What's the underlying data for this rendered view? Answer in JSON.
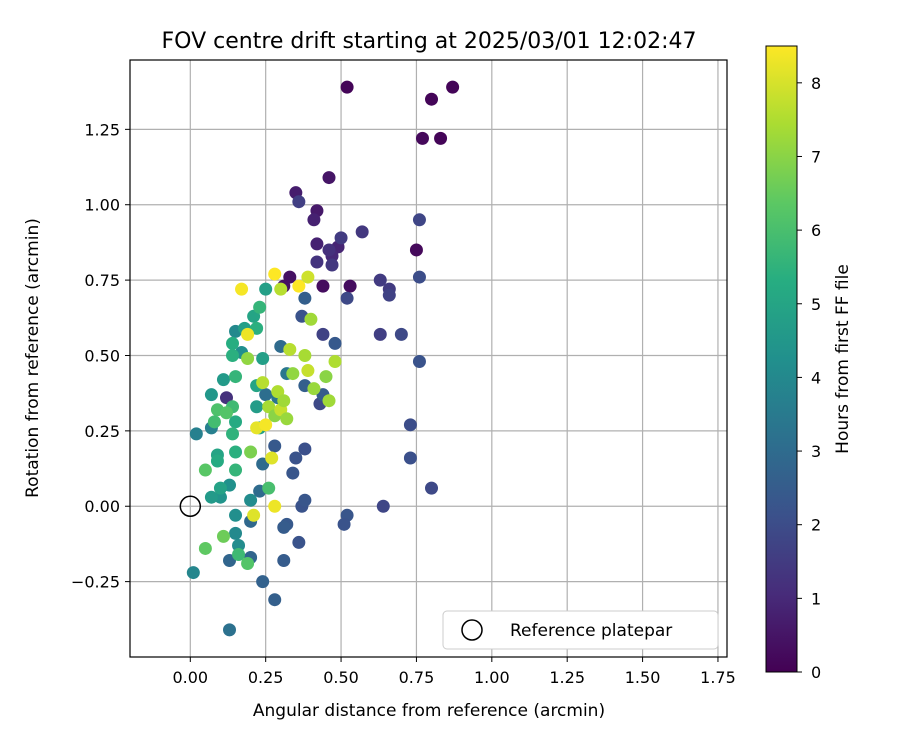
{
  "chart_data": {
    "type": "scatter",
    "title": "FOV centre drift starting at 2025/03/01 12:02:47",
    "xlabel": "Angular distance from reference (arcmin)",
    "ylabel": "Rotation from reference (arcmin)",
    "xlim": [
      -0.2,
      1.78
    ],
    "ylim": [
      -0.5,
      1.48
    ],
    "x_ticks": [
      0.0,
      0.25,
      0.5,
      0.75,
      1.0,
      1.25,
      1.5,
      1.75
    ],
    "x_tick_labels": [
      "0.00",
      "0.25",
      "0.50",
      "0.75",
      "1.00",
      "1.25",
      "1.50",
      "1.75"
    ],
    "y_ticks": [
      -0.25,
      0.0,
      0.25,
      0.5,
      0.75,
      1.0,
      1.25
    ],
    "y_tick_labels": [
      "−0.25",
      "0.00",
      "0.25",
      "0.50",
      "0.75",
      "1.00",
      "1.25"
    ],
    "grid": true,
    "legend": {
      "position": "lower-right",
      "entries": [
        "Reference platepar"
      ]
    },
    "reference_point": {
      "x": 0.0,
      "y": 0.0,
      "marker": "open-circle"
    },
    "colorbar": {
      "label": "Hours from first FF file",
      "min": 0,
      "max": 8.5,
      "ticks": [
        0,
        1,
        2,
        3,
        4,
        5,
        6,
        7,
        8
      ],
      "tick_labels": [
        "0",
        "1",
        "2",
        "3",
        "4",
        "5",
        "6",
        "7",
        "8"
      ],
      "colormap": "viridis"
    },
    "points": [
      [
        0.52,
        1.39,
        0.1
      ],
      [
        0.8,
        1.35,
        0.1
      ],
      [
        0.87,
        1.39,
        0.1
      ],
      [
        0.77,
        1.22,
        0.2
      ],
      [
        0.83,
        1.22,
        0.1
      ],
      [
        0.75,
        0.85,
        0.2
      ],
      [
        0.44,
        0.73,
        0.3
      ],
      [
        0.53,
        0.73,
        0.3
      ],
      [
        0.33,
        0.76,
        0.4
      ],
      [
        0.31,
        0.73,
        0.4
      ],
      [
        0.46,
        1.09,
        0.5
      ],
      [
        0.42,
        0.98,
        0.6
      ],
      [
        0.41,
        0.95,
        0.8
      ],
      [
        0.42,
        0.87,
        0.8
      ],
      [
        0.49,
        0.86,
        0.9
      ],
      [
        0.47,
        0.83,
        1.0
      ],
      [
        0.35,
        1.04,
        0.7
      ],
      [
        0.36,
        1.01,
        1.6
      ],
      [
        0.46,
        0.85,
        1.2
      ],
      [
        0.47,
        0.8,
        1.4
      ],
      [
        0.42,
        0.81,
        1.3
      ],
      [
        0.5,
        0.89,
        1.5
      ],
      [
        0.57,
        0.91,
        1.4
      ],
      [
        0.63,
        0.75,
        1.5
      ],
      [
        0.66,
        0.72,
        1.5
      ],
      [
        0.66,
        0.7,
        1.7
      ],
      [
        0.76,
        0.95,
        1.8
      ],
      [
        0.76,
        0.76,
        2.0
      ],
      [
        0.52,
        0.69,
        1.9
      ],
      [
        0.44,
        0.57,
        1.7
      ],
      [
        0.63,
        0.57,
        1.6
      ],
      [
        0.7,
        0.57,
        1.9
      ],
      [
        0.76,
        0.48,
        2.2
      ],
      [
        0.73,
        0.27,
        2.0
      ],
      [
        0.73,
        0.16,
        2.1
      ],
      [
        0.8,
        0.06,
        1.9
      ],
      [
        0.64,
        0.0,
        1.8
      ],
      [
        0.52,
        -0.03,
        2.3
      ],
      [
        0.51,
        -0.06,
        2.2
      ],
      [
        0.43,
        0.34,
        1.9
      ],
      [
        0.48,
        0.54,
        2.4
      ],
      [
        0.37,
        0.63,
        2.2
      ],
      [
        0.38,
        0.69,
        2.6
      ],
      [
        0.38,
        0.4,
        2.6
      ],
      [
        0.44,
        0.37,
        2.5
      ],
      [
        0.28,
        0.2,
        2.4
      ],
      [
        0.34,
        0.11,
        2.3
      ],
      [
        0.35,
        0.16,
        2.2
      ],
      [
        0.38,
        0.19,
        2.1
      ],
      [
        0.37,
        0.0,
        2.2
      ],
      [
        0.38,
        0.02,
        2.3
      ],
      [
        0.32,
        -0.06,
        2.4
      ],
      [
        0.31,
        -0.07,
        2.5
      ],
      [
        0.31,
        -0.18,
        2.5
      ],
      [
        0.36,
        -0.12,
        2.2
      ],
      [
        0.24,
        -0.25,
        2.7
      ],
      [
        0.28,
        -0.31,
        2.6
      ],
      [
        0.13,
        -0.41,
        3.2
      ],
      [
        0.13,
        -0.18,
        2.8
      ],
      [
        0.2,
        -0.17,
        2.8
      ],
      [
        0.2,
        -0.05,
        2.9
      ],
      [
        0.23,
        0.05,
        3.0
      ],
      [
        0.24,
        0.14,
        3.0
      ],
      [
        0.3,
        0.53,
        3.0
      ],
      [
        0.32,
        0.44,
        3.4
      ],
      [
        0.29,
        0.36,
        3.3
      ],
      [
        0.25,
        0.37,
        3.1
      ],
      [
        0.16,
        -0.13,
        4.1
      ],
      [
        0.15,
        -0.09,
        4.0
      ],
      [
        0.15,
        -0.03,
        4.2
      ],
      [
        0.1,
        0.03,
        4.4
      ],
      [
        0.13,
        0.07,
        4.3
      ],
      [
        0.2,
        0.02,
        4.1
      ],
      [
        0.01,
        -0.22,
        3.9
      ],
      [
        0.02,
        0.24,
        3.7
      ],
      [
        0.07,
        0.26,
        3.7
      ],
      [
        0.07,
        0.37,
        4.5
      ],
      [
        0.11,
        0.42,
        4.6
      ],
      [
        0.12,
        0.36,
        1.2
      ],
      [
        0.15,
        0.58,
        4.0
      ],
      [
        0.17,
        0.51,
        4.2
      ],
      [
        0.18,
        0.59,
        4.8
      ],
      [
        0.21,
        0.63,
        5.0
      ],
      [
        0.25,
        0.72,
        4.8
      ],
      [
        0.23,
        0.66,
        5.6
      ],
      [
        0.22,
        0.59,
        5.4
      ],
      [
        0.24,
        0.49,
        4.8
      ],
      [
        0.22,
        0.4,
        5.0
      ],
      [
        0.22,
        0.33,
        4.7
      ],
      [
        0.23,
        0.26,
        4.8
      ],
      [
        0.14,
        0.54,
        5.3
      ],
      [
        0.14,
        0.5,
        5.4
      ],
      [
        0.15,
        0.43,
        5.6
      ],
      [
        0.14,
        0.33,
        5.8
      ],
      [
        0.15,
        0.28,
        5.2
      ],
      [
        0.14,
        0.24,
        5.5
      ],
      [
        0.15,
        0.18,
        5.4
      ],
      [
        0.09,
        0.17,
        5.0
      ],
      [
        0.09,
        0.15,
        5.2
      ],
      [
        0.1,
        0.06,
        4.9
      ],
      [
        0.15,
        0.12,
        5.6
      ],
      [
        0.07,
        0.03,
        4.6
      ],
      [
        0.09,
        0.32,
        6.1
      ],
      [
        0.08,
        0.28,
        5.9
      ],
      [
        0.12,
        0.31,
        6.2
      ],
      [
        0.05,
        0.12,
        6.3
      ],
      [
        0.11,
        -0.1,
        6.6
      ],
      [
        0.05,
        -0.14,
        6.4
      ],
      [
        0.19,
        -0.19,
        6.2
      ],
      [
        0.16,
        -0.16,
        5.8
      ],
      [
        0.19,
        0.49,
        7.1
      ],
      [
        0.24,
        0.41,
        7.6
      ],
      [
        0.26,
        0.33,
        7.4
      ],
      [
        0.28,
        0.3,
        7.0
      ],
      [
        0.29,
        0.38,
        7.5
      ],
      [
        0.3,
        0.32,
        7.8
      ],
      [
        0.32,
        0.29,
        7.2
      ],
      [
        0.31,
        0.35,
        7.3
      ],
      [
        0.33,
        0.52,
        7.6
      ],
      [
        0.34,
        0.44,
        7.1
      ],
      [
        0.38,
        0.5,
        7.4
      ],
      [
        0.39,
        0.45,
        7.8
      ],
      [
        0.4,
        0.62,
        7.3
      ],
      [
        0.41,
        0.39,
        7.2
      ],
      [
        0.45,
        0.43,
        7.0
      ],
      [
        0.46,
        0.35,
        7.3
      ],
      [
        0.48,
        0.48,
        7.5
      ],
      [
        0.22,
        0.26,
        8.2
      ],
      [
        0.25,
        0.27,
        8.4
      ],
      [
        0.27,
        0.16,
        8.1
      ],
      [
        0.28,
        0.0,
        8.3
      ],
      [
        0.21,
        -0.03,
        8.1
      ],
      [
        0.17,
        0.72,
        8.4
      ],
      [
        0.28,
        0.77,
        8.5
      ],
      [
        0.36,
        0.73,
        8.5
      ],
      [
        0.39,
        0.76,
        7.9
      ],
      [
        0.19,
        0.57,
        8.3
      ],
      [
        0.3,
        0.72,
        7.6
      ],
      [
        0.26,
        0.06,
        6.0
      ],
      [
        0.2,
        0.18,
        6.8
      ]
    ]
  }
}
